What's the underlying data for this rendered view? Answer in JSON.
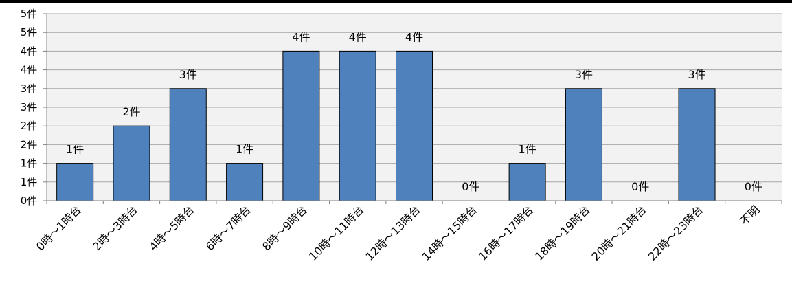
{
  "chart_data": {
    "type": "bar",
    "title": "",
    "xlabel": "",
    "ylabel": "",
    "categories": [
      "0時～1時台",
      "2時～3時台",
      "4時～5時台",
      "6時～7時台",
      "8時～9時台",
      "10時～11時台",
      "12時～13時台",
      "14時～15時台",
      "16時～17時台",
      "18時～19時台",
      "20時～21時台",
      "22時～23時台",
      "不明"
    ],
    "values": [
      1,
      2,
      3,
      1,
      4,
      4,
      4,
      0,
      1,
      3,
      0,
      3,
      0
    ],
    "data_labels": [
      "1件",
      "2件",
      "3件",
      "1件",
      "4件",
      "4件",
      "4件",
      "0件",
      "1件",
      "3件",
      "0件",
      "3件",
      "0件"
    ],
    "y_ticks": [
      0,
      0.5,
      1,
      1.5,
      2,
      2.5,
      3,
      3.5,
      4,
      4.5,
      5
    ],
    "y_tick_labels": [
      "0件",
      "1件",
      "1件",
      "2件",
      "2件",
      "3件",
      "3件",
      "4件",
      "4件",
      "5件",
      "5件"
    ],
    "ylim": [
      0,
      5
    ],
    "grid": true,
    "legend": "none",
    "colors": {
      "bar_fill": "#4f81bd",
      "bar_stroke": "#000000",
      "grid": "#a6a6a6",
      "plot_bg": "#f2f2f2",
      "axis": "#808080"
    }
  }
}
